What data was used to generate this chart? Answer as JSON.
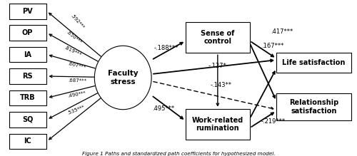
{
  "left_boxes": [
    "PV",
    "OP",
    "IA",
    "RS",
    "TRB",
    "SQ",
    "IC"
  ],
  "left_box_coefs": [
    ".592***",
    ".650***",
    ".819***",
    ".607***",
    ".687***",
    ".490***",
    ".535***"
  ],
  "ellipse_label": "Faculty\nstress",
  "sense_label": "Sense of\ncontrol",
  "rum_label": "Work-related\nrumination",
  "life_label": "Life satisfaction",
  "rel_label": "Relationship\nsatisfaction",
  "path_sense": "-.188***",
  "path_rum": ".495***",
  "path_life_direct": "-.127*",
  "path_rel_direct": "-.143**",
  "path_sense_life": ".167***",
  "path_rum_rel": "-.219***",
  "path_sense_life2": ".417***",
  "caption": "Figure 1 Paths and standardized path coefficients for hypothesized model.",
  "bg_color": "#ffffff"
}
